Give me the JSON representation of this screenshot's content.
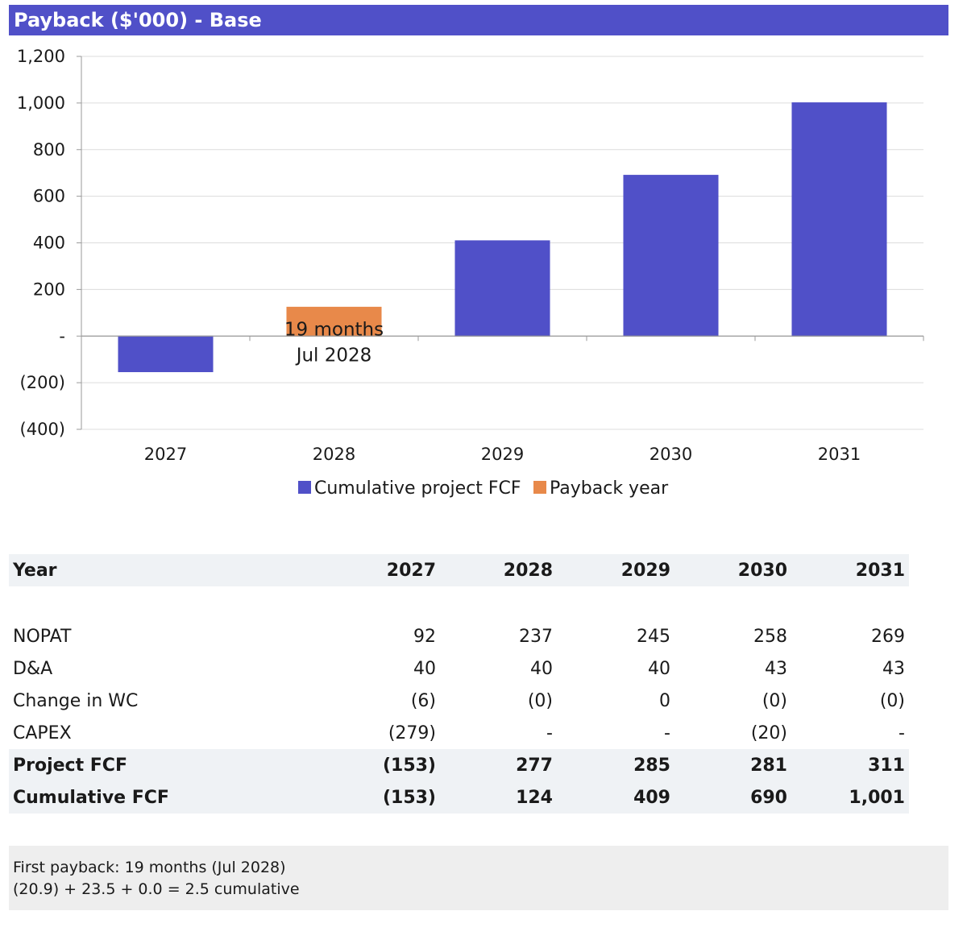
{
  "title": "Payback ($'000) - Base",
  "colors": {
    "accent": "#5050C8",
    "payback": "#E8894A",
    "header_bg": "#EFF2F5",
    "note_bg": "#EEEEEE"
  },
  "chart_data": {
    "type": "bar",
    "categories": [
      "2027",
      "2028",
      "2029",
      "2030",
      "2031"
    ],
    "series": [
      {
        "name": "Cumulative project FCF",
        "values": [
          -153,
          null,
          409,
          690,
          1001
        ],
        "color": "#5050C8"
      },
      {
        "name": "Payback year",
        "values": [
          null,
          124,
          null,
          null,
          null
        ],
        "color": "#E8894A"
      }
    ],
    "ylim": [
      -400,
      1200
    ],
    "yticks": [
      -400,
      -200,
      0,
      200,
      400,
      600,
      800,
      1000,
      1200
    ],
    "ytick_labels": [
      "(400)",
      "(200)",
      "-",
      "200",
      "400",
      "600",
      "800",
      "1,000",
      "1,200"
    ],
    "grid": true,
    "legend": "bottom",
    "annotation": {
      "category": "2028",
      "line1": "19 months",
      "line2": "Jul 2028"
    }
  },
  "table": {
    "header": {
      "label": "Year",
      "years": [
        "2027",
        "2028",
        "2029",
        "2030",
        "2031"
      ]
    },
    "rows": [
      {
        "label": "NOPAT",
        "values": [
          "92",
          "237",
          "245",
          "258",
          "269"
        ]
      },
      {
        "label": "D&A",
        "values": [
          "40",
          "40",
          "40",
          "43",
          "43"
        ]
      },
      {
        "label": "Change in WC",
        "values": [
          "(6)",
          "(0)",
          "0",
          "(0)",
          "(0)"
        ]
      },
      {
        "label": "CAPEX",
        "values": [
          "(279)",
          "-",
          "-",
          "(20)",
          "-"
        ]
      },
      {
        "label": "Project FCF",
        "values": [
          "(153)",
          "277",
          "285",
          "281",
          "311"
        ]
      },
      {
        "label": "Cumulative FCF",
        "values": [
          "(153)",
          "124",
          "409",
          "690",
          "1,001"
        ]
      }
    ]
  },
  "note": {
    "line1": "First payback: 19 months (Jul 2028)",
    "line2": "(20.9) + 23.5 + 0.0 = 2.5 cumulative"
  }
}
